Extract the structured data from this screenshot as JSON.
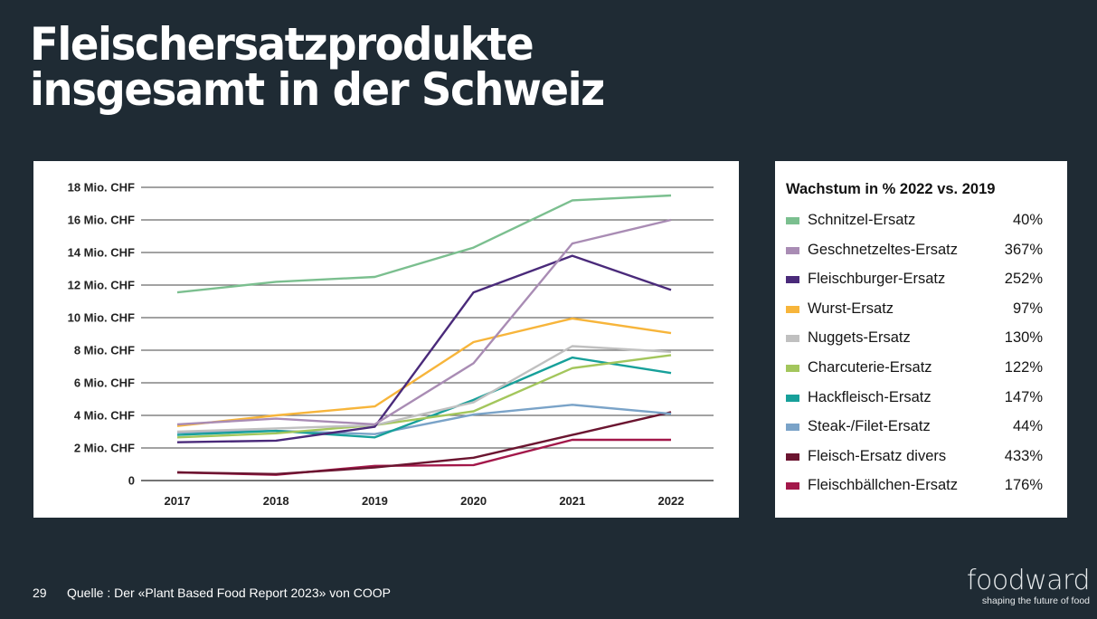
{
  "slide": {
    "title_lines": [
      "Fleischersatzprodukte",
      "insgesamt in der Schweiz"
    ],
    "page_number": "29",
    "source": "Quelle : Der «Plant Based Food Report 2023» von COOP",
    "logo": {
      "wordmark": "foodward",
      "tagline": "shaping the future of food"
    }
  },
  "legend": {
    "title": "Wachstum in % 2022 vs. 2019",
    "items": [
      {
        "label": "Schnitzel-Ersatz",
        "value": "40%",
        "color": "#7bbf8f"
      },
      {
        "label": "Geschnetzeltes-Ersatz",
        "value": "367%",
        "color": "#a98cb4"
      },
      {
        "label": "Fleischburger-Ersatz",
        "value": "252%",
        "color": "#4a2a7a"
      },
      {
        "label": "Wurst-Ersatz",
        "value": "97%",
        "color": "#f7b53b"
      },
      {
        "label": "Nuggets-Ersatz",
        "value": "130%",
        "color": "#c0c0c0"
      },
      {
        "label": "Charcuterie-Ersatz",
        "value": "122%",
        "color": "#a3c65c"
      },
      {
        "label": "Hackfleisch-Ersatz",
        "value": "147%",
        "color": "#17a09a"
      },
      {
        "label": "Steak-/Filet-Ersatz",
        "value": "44%",
        "color": "#7aa3c8"
      },
      {
        "label": "Fleisch-Ersatz divers",
        "value": "433%",
        "color": "#6b1530"
      },
      {
        "label": "Fleischbällchen-Ersatz",
        "value": "176%",
        "color": "#a3184a"
      }
    ]
  },
  "chart_data": {
    "type": "line",
    "title": "",
    "xlabel": "",
    "ylabel": "",
    "x": [
      "2017",
      "2018",
      "2019",
      "2020",
      "2021",
      "2022"
    ],
    "ylim": [
      0,
      18
    ],
    "yticks": [
      0,
      2,
      4,
      6,
      8,
      10,
      12,
      14,
      16,
      18
    ],
    "ytick_labels": [
      "0",
      "2 Mio. CHF",
      "4 Mio. CHF",
      "6 Mio. CHF",
      "8 Mio. CHF",
      "10 Mio. CHF",
      "12 Mio. CHF",
      "14 Mio. CHF",
      "16 Mio. CHF",
      "18 Mio. CHF"
    ],
    "grid": true,
    "legend_placement": "right",
    "series": [
      {
        "name": "Schnitzel-Ersatz",
        "color": "#7bbf8f",
        "values": [
          11.55,
          12.2,
          12.5,
          14.3,
          17.2,
          17.5
        ]
      },
      {
        "name": "Geschnetzeltes-Ersatz",
        "color": "#a98cb4",
        "values": [
          3.45,
          3.8,
          3.45,
          7.2,
          14.55,
          16.0
        ]
      },
      {
        "name": "Fleischburger-Ersatz",
        "color": "#4a2a7a",
        "values": [
          2.35,
          2.45,
          3.3,
          11.55,
          13.8,
          11.7
        ]
      },
      {
        "name": "Wurst-Ersatz",
        "color": "#f7b53b",
        "values": [
          3.35,
          4.0,
          4.55,
          8.5,
          9.95,
          9.05
        ]
      },
      {
        "name": "Nuggets-Ersatz",
        "color": "#c0c0c0",
        "values": [
          3.0,
          3.2,
          3.4,
          4.8,
          8.25,
          7.9
        ]
      },
      {
        "name": "Charcuterie-Ersatz",
        "color": "#a3c65c",
        "values": [
          2.65,
          2.9,
          3.4,
          4.25,
          6.9,
          7.7
        ]
      },
      {
        "name": "Hackfleisch-Ersatz",
        "color": "#17a09a",
        "values": [
          2.8,
          3.05,
          2.65,
          4.95,
          7.55,
          6.6
        ]
      },
      {
        "name": "Steak-/Filet-Ersatz",
        "color": "#7aa3c8",
        "values": [
          2.95,
          3.05,
          2.85,
          4.05,
          4.65,
          4.1
        ]
      },
      {
        "name": "Fleisch-Ersatz divers",
        "color": "#6b1530",
        "values": [
          0.5,
          0.4,
          0.8,
          1.4,
          2.8,
          4.2
        ]
      },
      {
        "name": "Fleischbällchen-Ersatz",
        "color": "#a3184a",
        "values": [
          0.5,
          0.35,
          0.9,
          0.95,
          2.5,
          2.5
        ]
      }
    ]
  }
}
